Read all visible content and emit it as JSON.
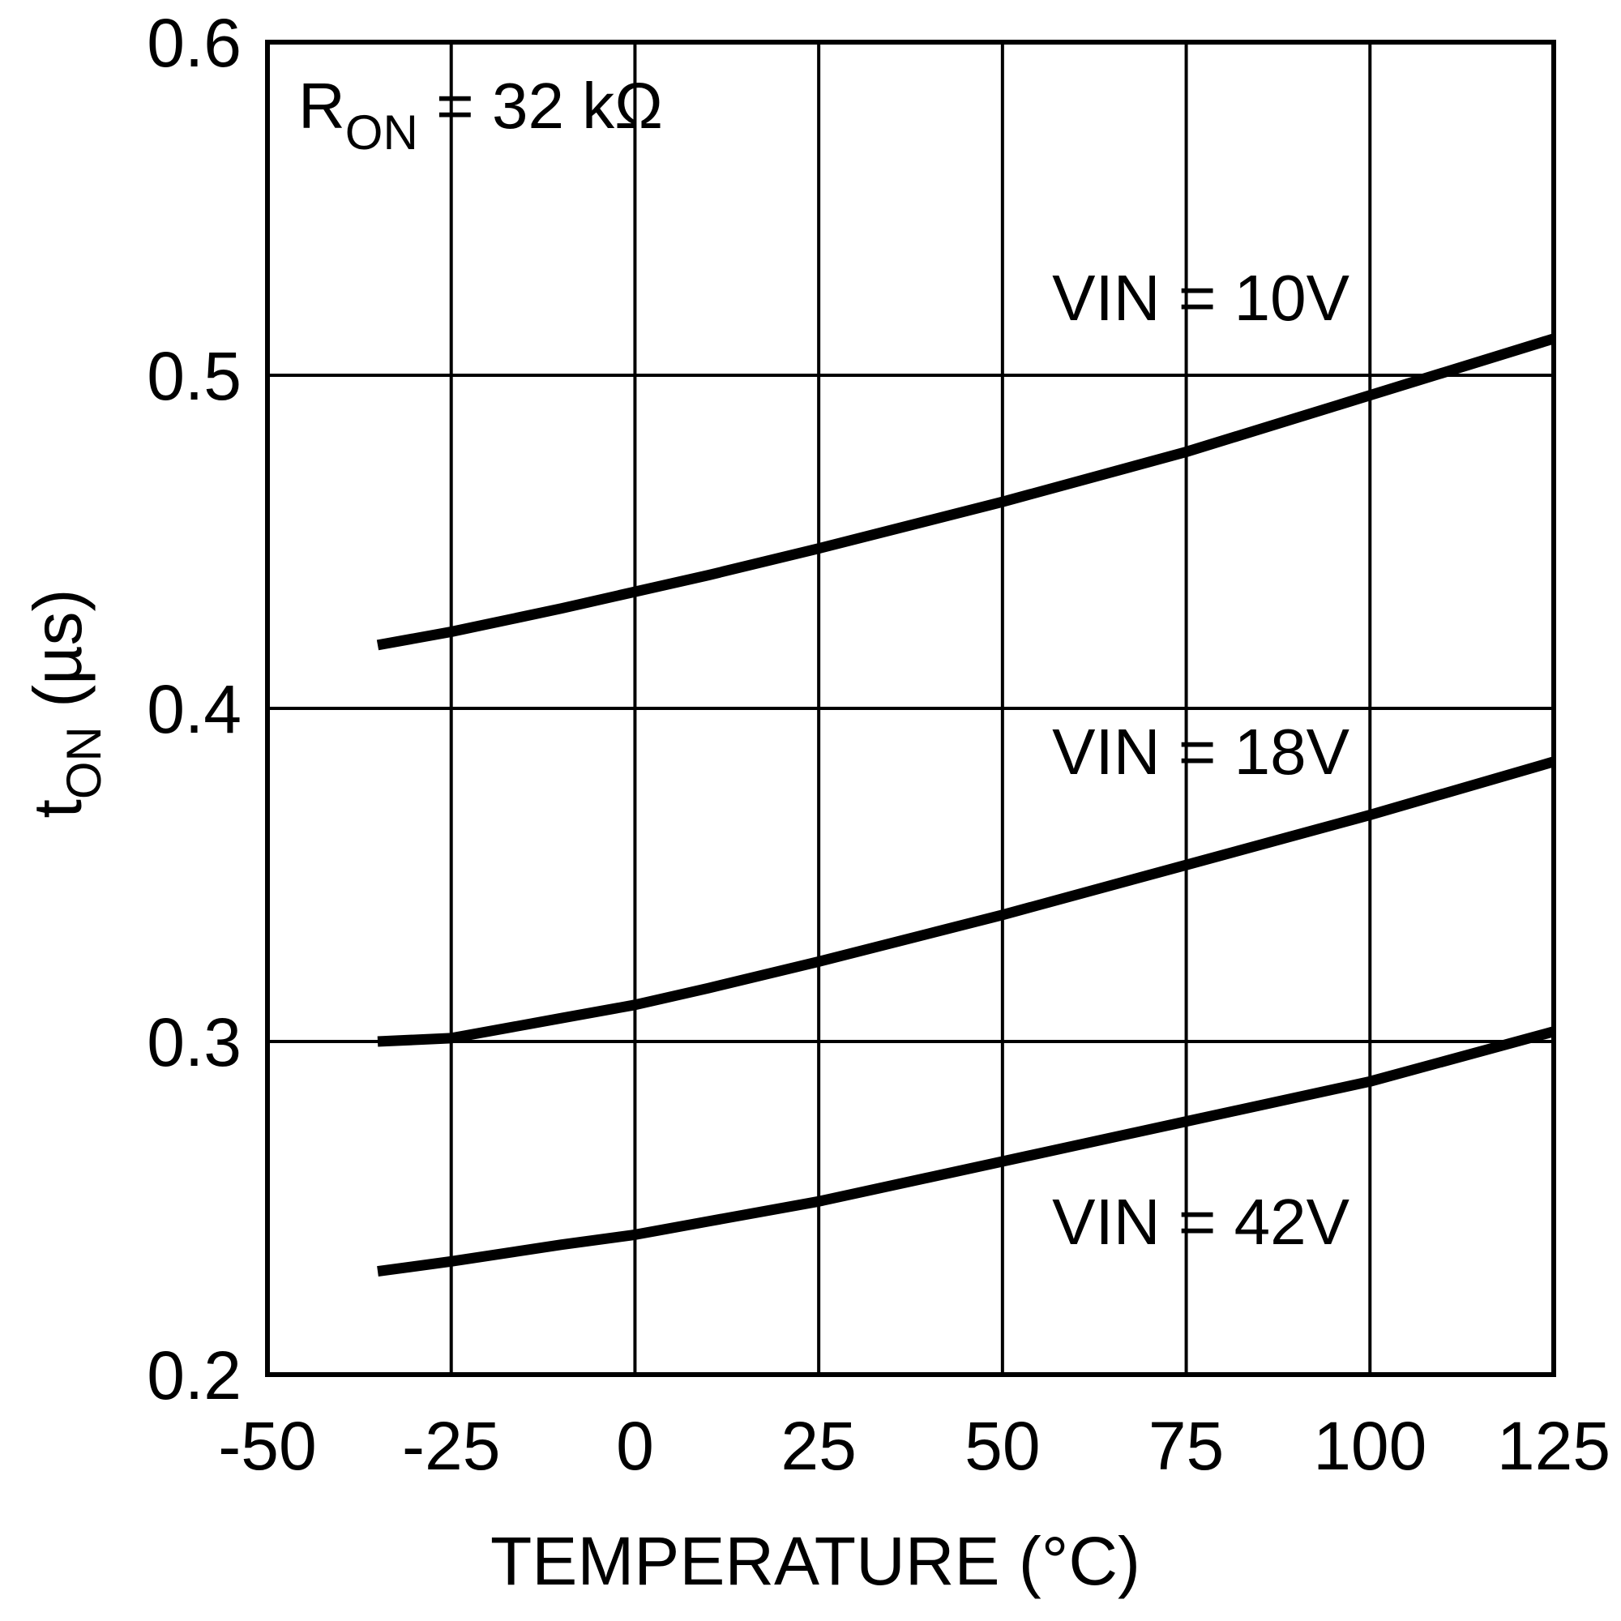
{
  "chart_data": {
    "type": "line",
    "title": "",
    "xlabel": "TEMPERATURE (°C)",
    "ylabel": {
      "main": "t",
      "sub": "ON",
      "unit": " (µs)"
    },
    "xlim": [
      -50,
      125
    ],
    "ylim": [
      0.2,
      0.6
    ],
    "xticks": [
      -50,
      -25,
      0,
      25,
      50,
      75,
      100,
      125
    ],
    "xtick_labels": [
      "-50",
      "-25",
      "0",
      "25",
      "50",
      "75",
      "100",
      "125"
    ],
    "yticks": [
      0.2,
      0.3,
      0.4,
      0.5,
      0.6
    ],
    "ytick_labels": [
      "0.2",
      "0.3",
      "0.4",
      "0.5",
      "0.6"
    ],
    "grid": true,
    "annotation": {
      "main": "R",
      "sub": "ON",
      "rest": " = 32 kΩ"
    },
    "series": [
      {
        "name": "VIN = 10V",
        "x": [
          -35,
          -25,
          -10,
          0,
          10,
          25,
          50,
          75,
          100,
          125
        ],
        "y": [
          0.419,
          0.423,
          0.43,
          0.435,
          0.44,
          0.448,
          0.462,
          0.477,
          0.494,
          0.511
        ]
      },
      {
        "name": "VIN = 18V",
        "x": [
          -35,
          -25,
          -10,
          0,
          10,
          25,
          50,
          75,
          100,
          125
        ],
        "y": [
          0.3,
          0.301,
          0.307,
          0.311,
          0.316,
          0.324,
          0.338,
          0.353,
          0.368,
          0.384
        ]
      },
      {
        "name": "VIN = 42V",
        "x": [
          -35,
          -25,
          -10,
          0,
          10,
          25,
          50,
          75,
          100,
          125
        ],
        "y": [
          0.231,
          0.234,
          0.239,
          0.242,
          0.246,
          0.252,
          0.264,
          0.276,
          0.288,
          0.303
        ]
      }
    ]
  }
}
